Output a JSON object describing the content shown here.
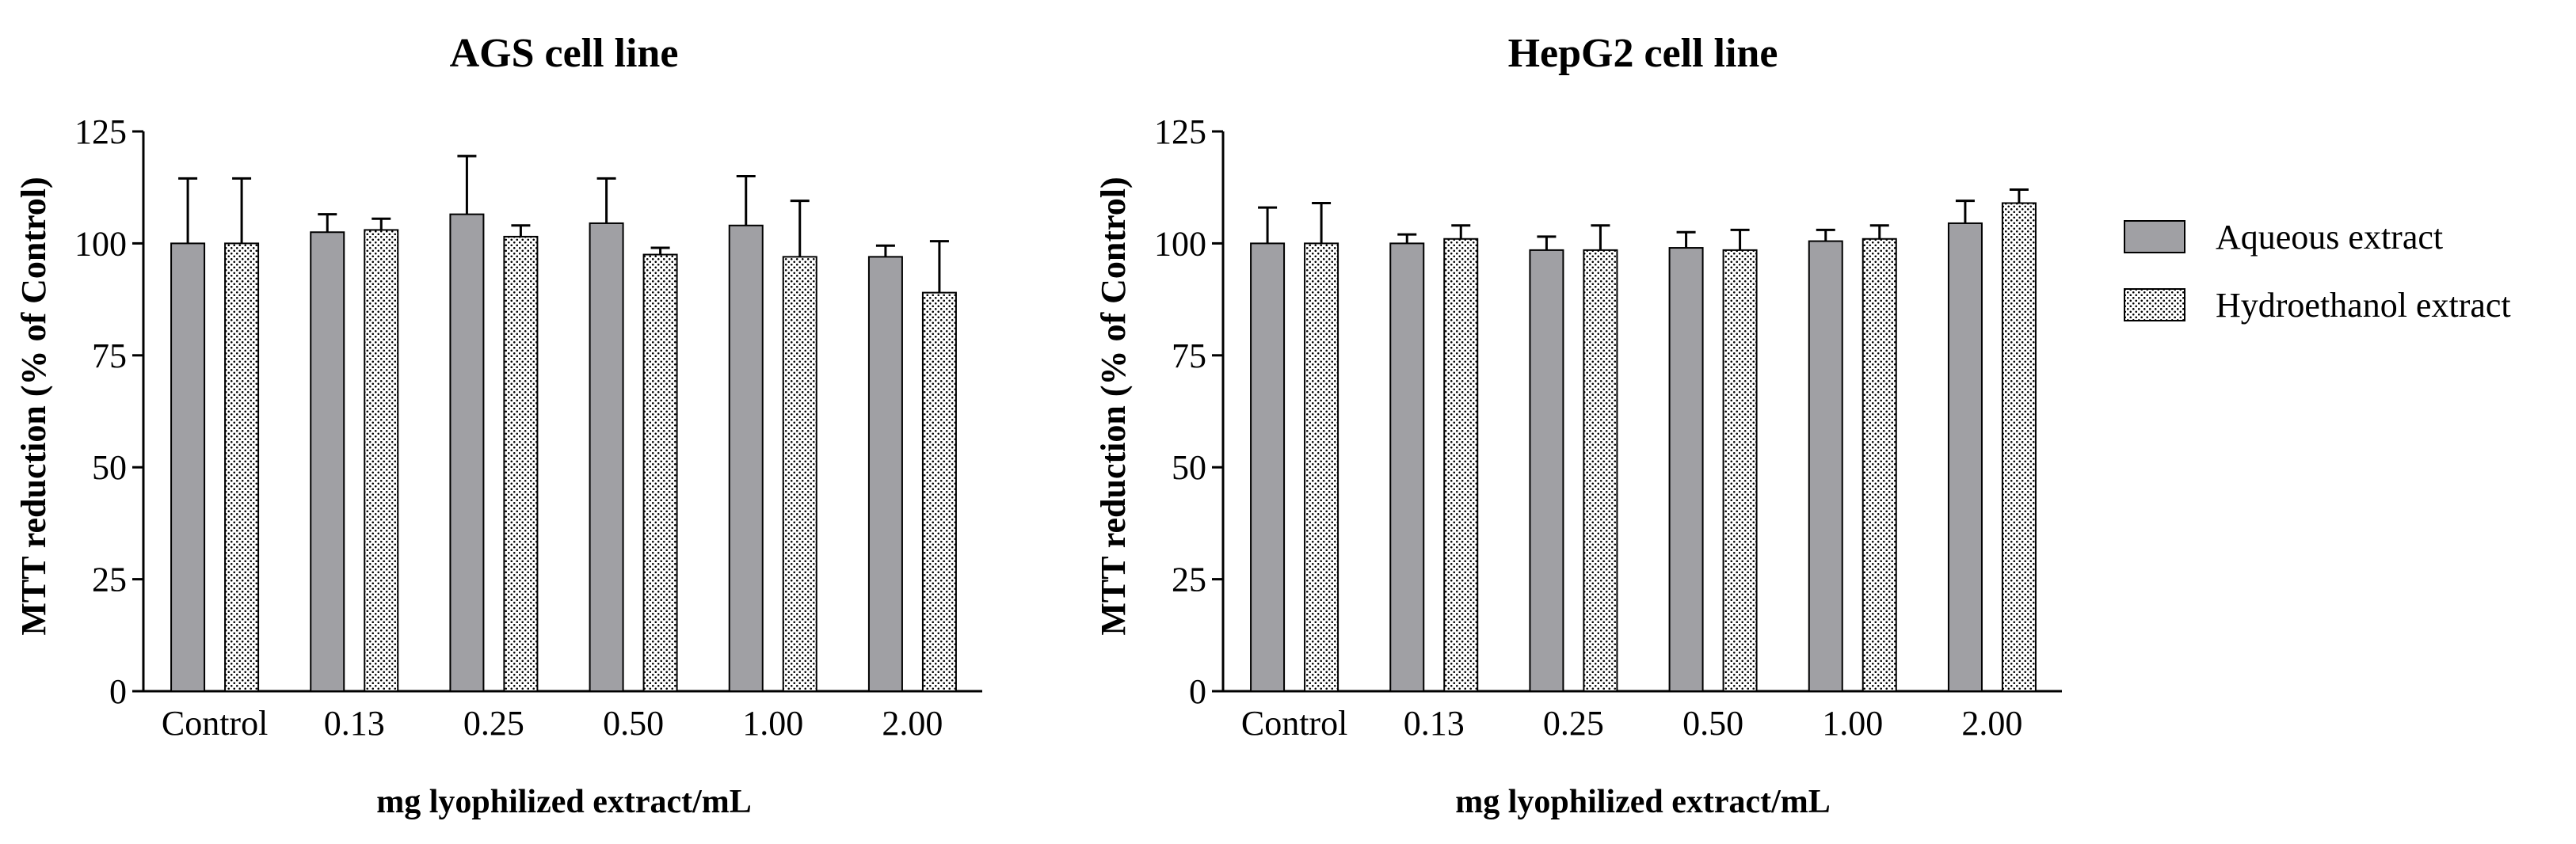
{
  "chart_data": [
    {
      "type": "bar",
      "title": "AGS cell line",
      "xlabel": "mg lyophilized extract/mL",
      "ylabel": "MTT reduction (% of Control)",
      "ylim": [
        0,
        125
      ],
      "yticks": [
        0,
        25,
        50,
        75,
        100,
        125
      ],
      "categories": [
        "Control",
        "0.13",
        "0.25",
        "0.50",
        "1.00",
        "2.00"
      ],
      "series": [
        {
          "name": "Aqueous extract",
          "values": [
            100,
            102.5,
            106.5,
            104.5,
            104,
            97
          ],
          "errors": [
            14.5,
            4,
            13,
            10,
            11,
            2.5
          ]
        },
        {
          "name": "Hydroethanol extract",
          "values": [
            100,
            103,
            101.5,
            97.5,
            97,
            89
          ],
          "errors": [
            14.5,
            2.5,
            2.5,
            1.5,
            12.5,
            11.5
          ]
        }
      ]
    },
    {
      "type": "bar",
      "title": "HepG2 cell line",
      "xlabel": "mg lyophilized extract/mL",
      "ylabel": "MTT reduction (% of Control)",
      "ylim": [
        0,
        125
      ],
      "yticks": [
        0,
        25,
        50,
        75,
        100,
        125
      ],
      "categories": [
        "Control",
        "0.13",
        "0.25",
        "0.50",
        "1.00",
        "2.00"
      ],
      "series": [
        {
          "name": "Aqueous extract",
          "values": [
            100,
            100,
            98.5,
            99,
            100.5,
            104.5
          ],
          "errors": [
            8,
            2,
            3,
            3.5,
            2.5,
            5
          ]
        },
        {
          "name": "Hydroethanol extract",
          "values": [
            100,
            101,
            98.5,
            98.5,
            101,
            109
          ],
          "errors": [
            9,
            3,
            5.5,
            4.5,
            3,
            3
          ]
        }
      ]
    }
  ],
  "legend": {
    "items": [
      {
        "label": "Aqueous extract",
        "swatch": "solid-gray"
      },
      {
        "label": "Hydroethanol extract",
        "swatch": "dotted"
      }
    ]
  },
  "colors": {
    "aqueous_fill": "#a0a0a4",
    "dot": "#000000",
    "axis": "#000000"
  }
}
